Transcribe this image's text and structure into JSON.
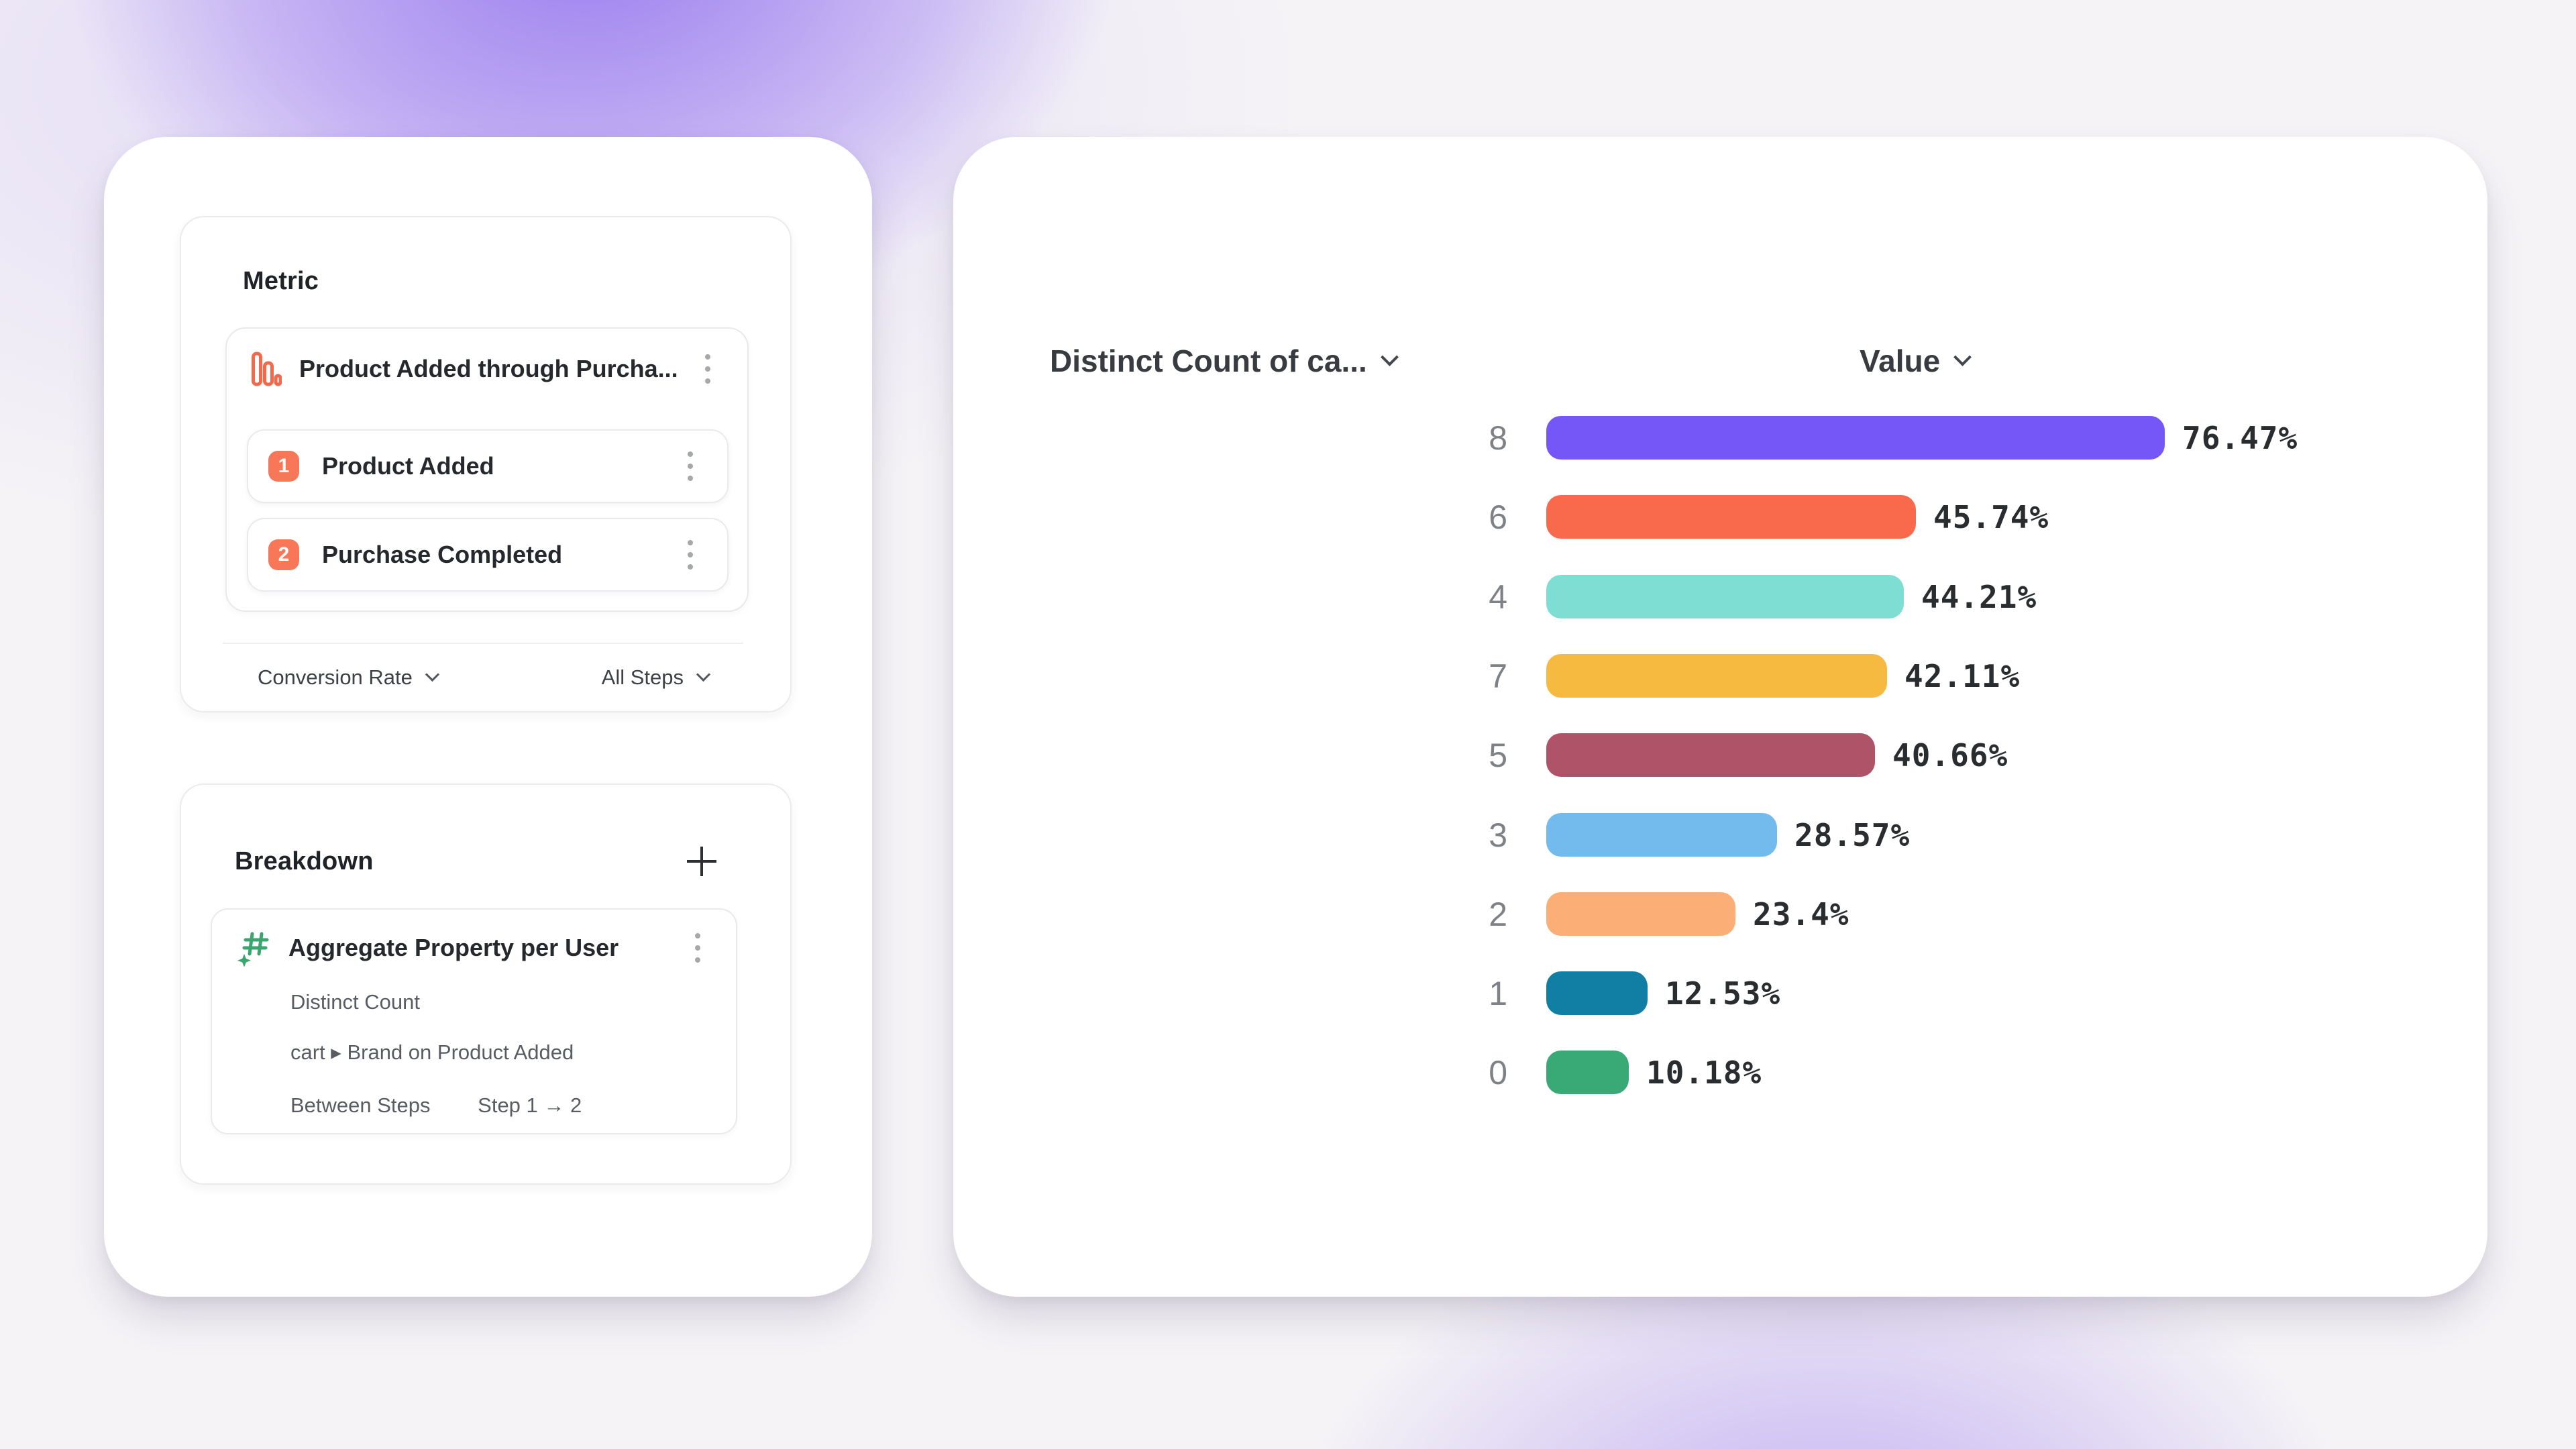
{
  "colors": {
    "accent_orange": "#F87758",
    "funnel_icon_stroke": "#F4694B",
    "breakdown_icon_green": "#3AA56F",
    "card_background": "#FFFFFF",
    "page_gradient_purple": "#805AEC"
  },
  "metric_panel": {
    "title": "Metric",
    "funnel": {
      "name": "Product Added through Purcha...",
      "steps": [
        {
          "number": "1",
          "label": "Product Added"
        },
        {
          "number": "2",
          "label": "Purchase Completed"
        }
      ]
    },
    "footer": {
      "conversion_label": "Conversion Rate",
      "steps_label": "All Steps"
    }
  },
  "breakdown_panel": {
    "title": "Breakdown",
    "item": {
      "title": "Aggregate Property per User",
      "aggregation": "Distinct Count",
      "property": "cart ▸ Brand on Product Added",
      "between_label": "Between Steps",
      "between_value": "Step 1 → 2"
    }
  },
  "chart_data": {
    "type": "bar",
    "orientation": "horizontal",
    "column_headers": [
      "Distinct Count of ca...",
      "Value"
    ],
    "categories": [
      "8",
      "6",
      "4",
      "7",
      "5",
      "3",
      "2",
      "1",
      "0"
    ],
    "values": [
      76.47,
      45.74,
      44.21,
      42.11,
      40.66,
      28.57,
      23.4,
      12.53,
      10.18
    ],
    "value_labels": [
      "76.47%",
      "45.74%",
      "44.21%",
      "42.11%",
      "40.66%",
      "28.57%",
      "23.4%",
      "12.53%",
      "10.18%"
    ],
    "bar_colors": [
      "#7457F6",
      "#F96A4C",
      "#7FDED3",
      "#F7BA40",
      "#AF5468",
      "#72BBEC",
      "#FBAE75",
      "#117FA3",
      "#39A976"
    ],
    "scale_max": 76.47,
    "grid": false,
    "legend": false
  }
}
